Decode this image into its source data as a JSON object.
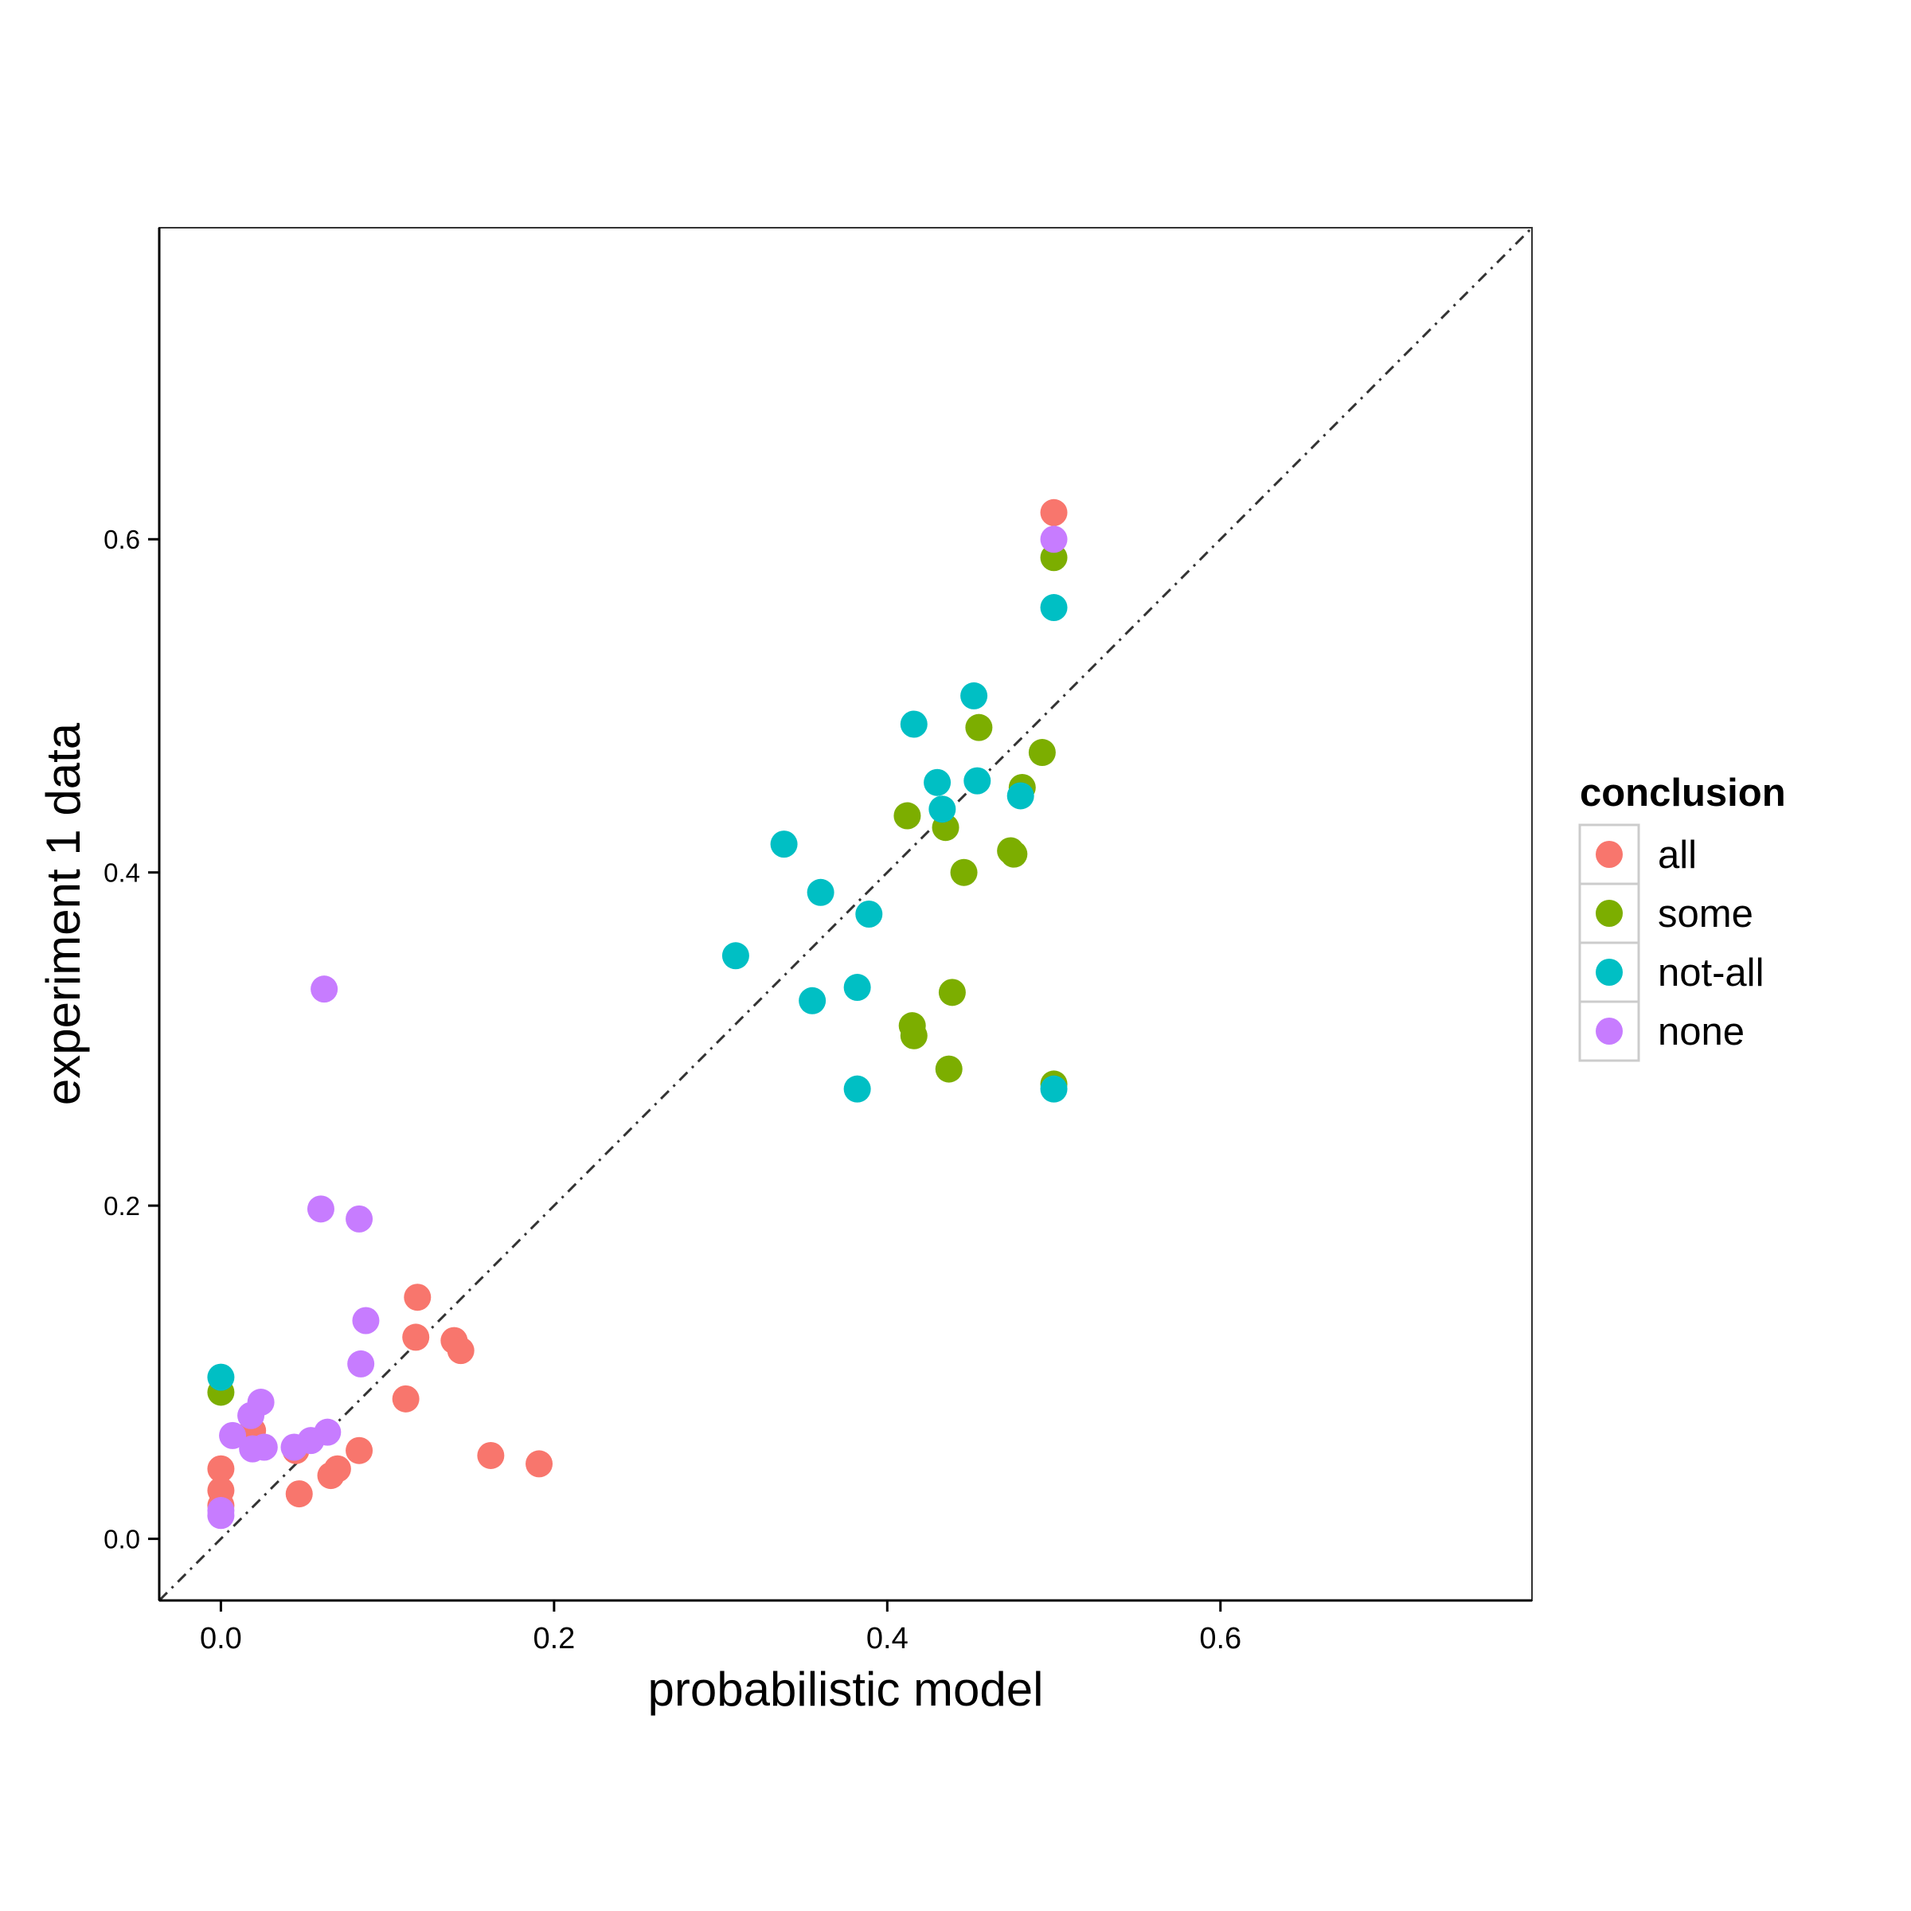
{
  "chart_data": {
    "type": "scatter",
    "xlabel": "probabilistic model",
    "ylabel": "experiment 1 data",
    "xlim": [
      -0.037,
      0.787
    ],
    "ylim": [
      -0.037,
      0.787
    ],
    "xticks": [
      0.0,
      0.2,
      0.4,
      0.6
    ],
    "yticks": [
      0.0,
      0.2,
      0.4,
      0.6
    ],
    "xtick_labels": [
      "0.0",
      "0.2",
      "0.4",
      "0.6"
    ],
    "ytick_labels": [
      "0.0",
      "0.2",
      "0.4",
      "0.6"
    ],
    "grid": false,
    "reference_line": "y = x (dash-dot)",
    "legend": {
      "title": "conclusion",
      "placement": "right"
    },
    "series": [
      {
        "name": "all",
        "color": "#F8766D",
        "points": [
          [
            0.5,
            0.616
          ],
          [
            0.118,
            0.145
          ],
          [
            0.117,
            0.121
          ],
          [
            0.14,
            0.119
          ],
          [
            0.144,
            0.113
          ],
          [
            0.111,
            0.084
          ],
          [
            0.019,
            0.065
          ],
          [
            0.083,
            0.053
          ],
          [
            0.0,
            0.042
          ],
          [
            0.0,
            0.029
          ],
          [
            0.0,
            0.02
          ],
          [
            0.047,
            0.027
          ],
          [
            0.07,
            0.042
          ],
          [
            0.066,
            0.038
          ],
          [
            0.162,
            0.05
          ],
          [
            0.191,
            0.045
          ],
          [
            0.045,
            0.053
          ]
        ]
      },
      {
        "name": "some",
        "color": "#7CAE00",
        "points": [
          [
            0.5,
            0.589
          ],
          [
            0.455,
            0.487
          ],
          [
            0.493,
            0.472
          ],
          [
            0.481,
            0.451
          ],
          [
            0.412,
            0.434
          ],
          [
            0.435,
            0.427
          ],
          [
            0.474,
            0.413
          ],
          [
            0.476,
            0.411
          ],
          [
            0.446,
            0.4
          ],
          [
            0.439,
            0.328
          ],
          [
            0.415,
            0.308
          ],
          [
            0.416,
            0.302
          ],
          [
            0.437,
            0.282
          ],
          [
            0.5,
            0.273
          ],
          [
            0.0,
            0.088
          ]
        ]
      },
      {
        "name": "not-all",
        "color": "#00BFC4",
        "points": [
          [
            0.5,
            0.559
          ],
          [
            0.452,
            0.506
          ],
          [
            0.416,
            0.489
          ],
          [
            0.43,
            0.454
          ],
          [
            0.454,
            0.455
          ],
          [
            0.433,
            0.438
          ],
          [
            0.48,
            0.446
          ],
          [
            0.338,
            0.417
          ],
          [
            0.36,
            0.388
          ],
          [
            0.389,
            0.375
          ],
          [
            0.309,
            0.35
          ],
          [
            0.382,
            0.331
          ],
          [
            0.355,
            0.323
          ],
          [
            0.382,
            0.27
          ],
          [
            0.5,
            0.27
          ],
          [
            0.0,
            0.097
          ]
        ]
      },
      {
        "name": "none",
        "color": "#C77CFF",
        "points": [
          [
            0.5,
            0.6
          ],
          [
            0.062,
            0.33
          ],
          [
            0.06,
            0.198
          ],
          [
            0.083,
            0.192
          ],
          [
            0.087,
            0.131
          ],
          [
            0.084,
            0.105
          ],
          [
            0.024,
            0.082
          ],
          [
            0.018,
            0.074
          ],
          [
            0.007,
            0.062
          ],
          [
            0.064,
            0.064
          ],
          [
            0.054,
            0.059
          ],
          [
            0.044,
            0.055
          ],
          [
            0.019,
            0.054
          ],
          [
            0.026,
            0.055
          ],
          [
            0.0,
            0.017
          ],
          [
            0.0,
            0.014
          ]
        ]
      }
    ]
  }
}
